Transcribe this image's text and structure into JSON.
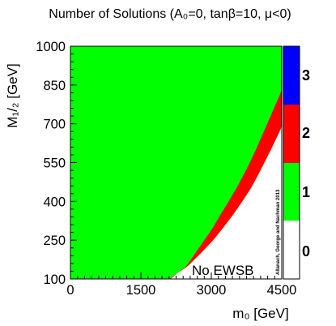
{
  "chart_data": {
    "type": "heatmap",
    "title": "Number of Solutions (A₀=0, tanβ=10, μ<0)",
    "xlabel": "m₀ [GeV]",
    "ylabel": "M₁/₂ [GeV]",
    "xlim": [
      0,
      4500
    ],
    "ylim": [
      100,
      1000
    ],
    "x_ticks": [
      0,
      1500,
      3000,
      4500
    ],
    "y_ticks": [
      100,
      250,
      400,
      550,
      700,
      850,
      1000
    ],
    "x_tick_labels": [
      "0",
      "1500",
      "3000",
      "4500"
    ],
    "y_tick_labels": [
      "100",
      "250",
      "400",
      "550",
      "700",
      "850",
      "1000"
    ],
    "color_scale": {
      "levels": [
        "0",
        "1",
        "2",
        "3"
      ],
      "colors": [
        "#ffffff",
        "#00ff00",
        "#ff0000",
        "#0000ff"
      ]
    },
    "regions": [
      {
        "value": 1,
        "description": "one solution: covers most of the plane left of the boundary"
      },
      {
        "value": 2,
        "description": "two solutions: thin band along the EWSB boundary"
      },
      {
        "value": 0,
        "description": "no solution: lower-right corner"
      }
    ],
    "ewsb_boundary_m0": [
      [
        100,
        2100
      ],
      [
        150,
        2500
      ],
      [
        200,
        2780
      ],
      [
        250,
        3040
      ],
      [
        300,
        3260
      ],
      [
        350,
        3470
      ],
      [
        400,
        3660
      ],
      [
        450,
        3840
      ],
      [
        500,
        3990
      ],
      [
        550,
        4130
      ],
      [
        600,
        4270
      ],
      [
        650,
        4400
      ],
      [
        680,
        4480
      ],
      [
        700,
        4520
      ]
    ],
    "two_solution_band_inner_m0": [
      [
        100,
        2130
      ],
      [
        150,
        2470
      ],
      [
        200,
        2660
      ],
      [
        250,
        2850
      ],
      [
        300,
        3040
      ],
      [
        350,
        3200
      ],
      [
        400,
        3370
      ],
      [
        450,
        3530
      ],
      [
        500,
        3680
      ],
      [
        550,
        3820
      ],
      [
        600,
        3950
      ],
      [
        650,
        4070
      ],
      [
        700,
        4190
      ],
      [
        750,
        4310
      ],
      [
        800,
        4430
      ],
      [
        830,
        4520
      ]
    ],
    "annotations": [
      "No EWSB"
    ],
    "credit": "Allanach, George and Nachman 2013"
  }
}
